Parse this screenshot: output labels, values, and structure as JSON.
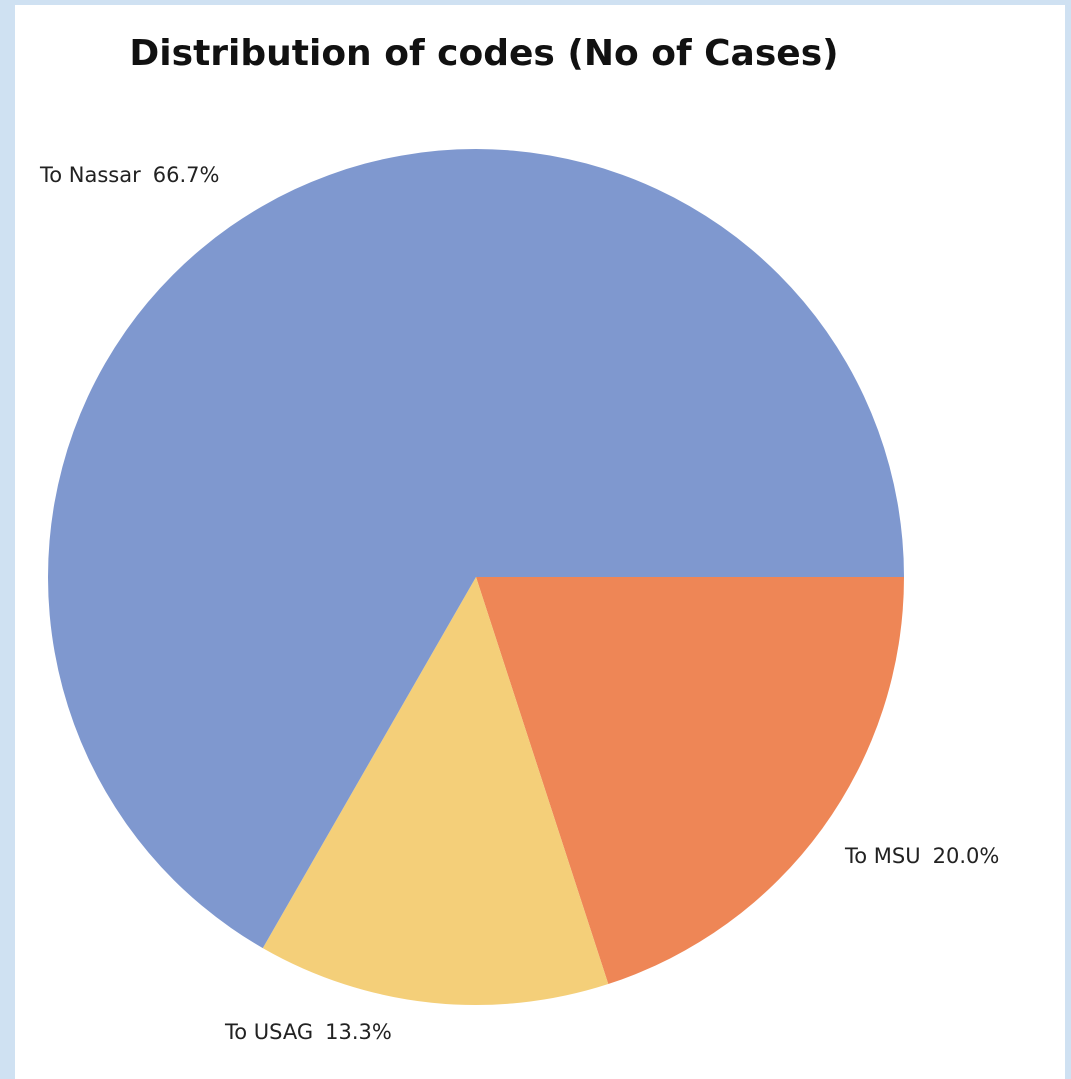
{
  "chart_data": {
    "type": "pie",
    "title": "Distribution of codes (No of Cases)",
    "categories": [
      "To MSU",
      "To USAG",
      "To Nassar"
    ],
    "values": [
      20.0,
      13.3,
      66.7
    ],
    "value_labels": [
      "20.0%",
      "13.3%",
      "66.7%"
    ],
    "colors": [
      "#ee8656",
      "#f4cf79",
      "#7f98cf"
    ]
  }
}
